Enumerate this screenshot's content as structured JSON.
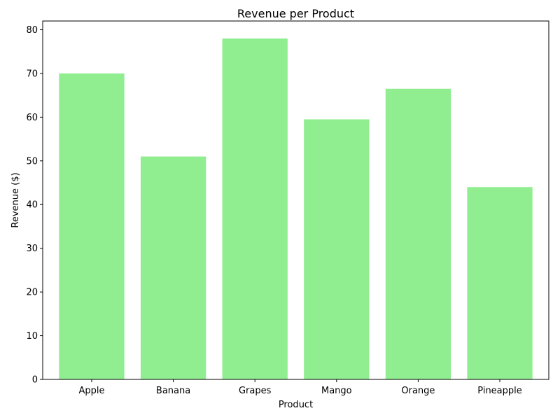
{
  "chart_data": {
    "type": "bar",
    "title": "Revenue per Product",
    "xlabel": "Product",
    "ylabel": "Revenue ($)",
    "categories": [
      "Apple",
      "Banana",
      "Grapes",
      "Mango",
      "Orange",
      "Pineapple"
    ],
    "values": [
      70,
      51,
      78,
      59.5,
      66.5,
      44
    ],
    "ylim": [
      0,
      82
    ],
    "yticks": [
      0,
      10,
      20,
      30,
      40,
      50,
      60,
      70,
      80
    ],
    "bar_color": "#90EE90",
    "grid": false,
    "legend": "none"
  }
}
